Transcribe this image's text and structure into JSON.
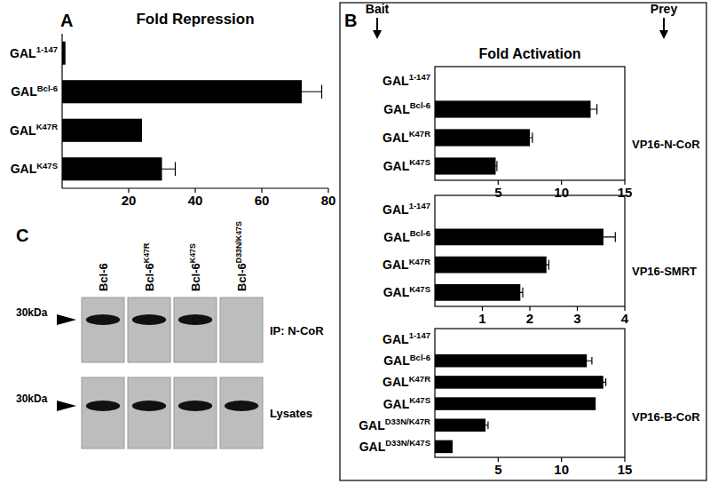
{
  "figure": {
    "panel_labels": [
      "A",
      "B",
      "C"
    ],
    "bait": "Bait",
    "prey": "Prey",
    "b_title": "Fold Activation"
  },
  "chart_data": [
    {
      "type": "bar",
      "orientation": "horizontal",
      "title": "Fold Repression",
      "categories": [
        "GAL1-147",
        "GALBcl-6",
        "GALK47R",
        "GALK47S"
      ],
      "values": [
        1,
        72,
        24,
        30
      ],
      "errors": [
        null,
        6,
        null,
        4
      ],
      "xlim": [
        0,
        80
      ],
      "xticks": [
        20,
        40,
        60,
        80
      ],
      "color": "#000000"
    },
    {
      "type": "bar",
      "orientation": "horizontal",
      "subtitle": "VP16-N-CoR",
      "categories": [
        "GAL1-147",
        "GALBcl-6",
        "GALK47R",
        "GALK47S"
      ],
      "values": [
        0,
        12.3,
        7.5,
        4.8
      ],
      "errors": [
        null,
        0.5,
        0.2,
        0.1
      ],
      "xlim": [
        0,
        15
      ],
      "xticks": [
        5,
        10,
        15
      ],
      "color": "#000000"
    },
    {
      "type": "bar",
      "orientation": "horizontal",
      "subtitle": "VP16-SMRT",
      "categories": [
        "GAL1-147",
        "GALBcl-6",
        "GALK47R",
        "GALK47S"
      ],
      "values": [
        0,
        3.55,
        2.35,
        1.8
      ],
      "errors": [
        null,
        0.25,
        0.05,
        0.05
      ],
      "xlim": [
        0,
        4
      ],
      "xticks": [
        1,
        2,
        3,
        4
      ],
      "color": "#000000"
    },
    {
      "type": "bar",
      "orientation": "horizontal",
      "subtitle": "VP16-B-CoR",
      "categories": [
        "GAL1-147",
        "GALBcl-6",
        "GALK47R",
        "GALK47S",
        "GALD33N/K47R",
        "GALD33N/K47S"
      ],
      "values": [
        0,
        12.0,
        13.3,
        12.7,
        4.0,
        1.4
      ],
      "errors": [
        null,
        0.4,
        0.2,
        null,
        0.2,
        null
      ],
      "xlim": [
        0,
        15
      ],
      "xticks": [
        5,
        10,
        15
      ],
      "color": "#000000"
    }
  ],
  "blot": {
    "lanes": [
      "Bcl-6",
      "Bcl-6K47R",
      "Bcl-6K47S",
      "Bcl-6D33N/K47S"
    ],
    "rows": [
      "IP: N-CoR",
      "Lysates"
    ],
    "marker": "30kDa",
    "bands": [
      [
        1,
        1,
        1,
        0
      ],
      [
        1,
        1,
        1,
        1
      ]
    ]
  }
}
